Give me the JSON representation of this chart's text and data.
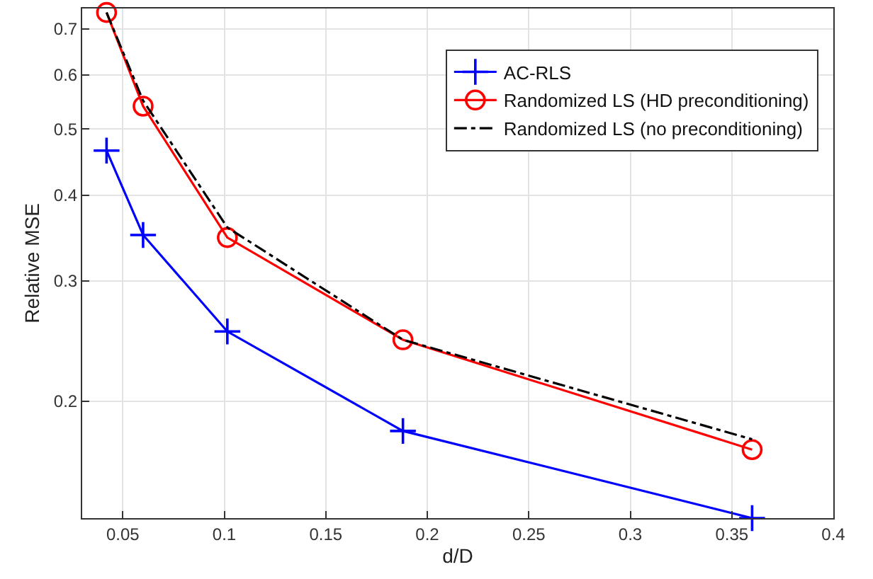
{
  "chart_data": {
    "type": "line",
    "xlabel": "d/D",
    "ylabel": "Relative MSE",
    "log": "y",
    "grid": true,
    "legend": "top right",
    "x": [
      0.042,
      0.06,
      0.1015,
      0.188,
      0.36
    ],
    "xlim": [
      0.03,
      0.4
    ],
    "xticks": [
      0.05,
      0.1,
      0.15,
      0.2,
      0.25,
      0.3,
      0.35,
      0.4
    ],
    "ylim": [
      0.135,
      0.75
    ],
    "yticks": [
      0.2,
      0.3,
      0.4,
      0.5,
      0.6,
      0.7
    ],
    "series": [
      {
        "name": "AC-RLS",
        "color": "#0000ff",
        "values": [
          0.465,
          0.35,
          0.253,
          0.181,
          0.135
        ],
        "marker": "cross",
        "line_style": "solid"
      },
      {
        "name": "Randomized LS (HD preconditioning)",
        "color": "#ff0000",
        "values": [
          0.74,
          0.54,
          0.347,
          0.246,
          0.17
        ],
        "marker": "circle",
        "line_style": "solid"
      },
      {
        "name": "Randomized LS (no preconditioning)",
        "color": "#000000",
        "values": [
          0.74,
          0.55,
          0.359,
          0.246,
          0.176
        ],
        "marker": "none",
        "line_style": "dashdot"
      }
    ]
  }
}
